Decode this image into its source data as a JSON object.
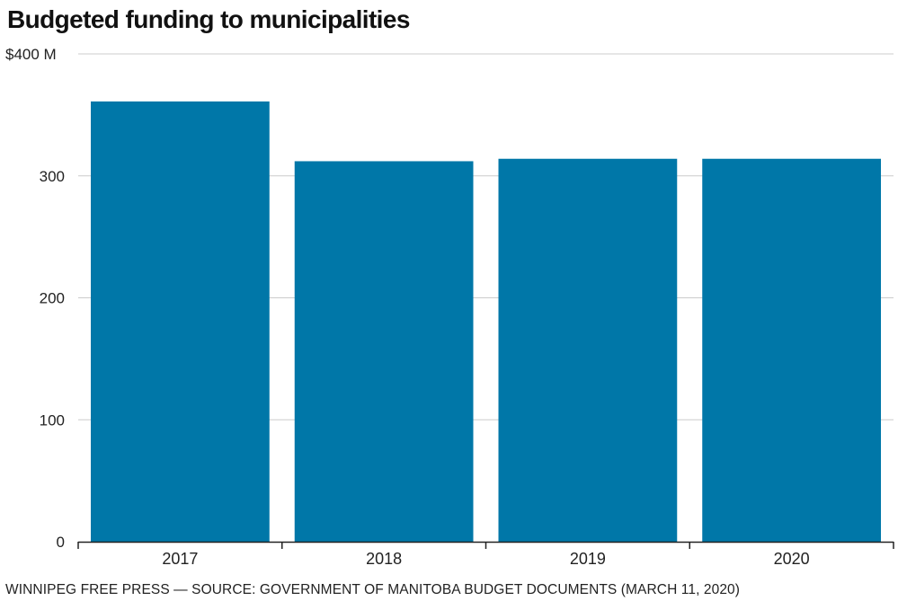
{
  "title": "Budgeted funding to municipalities",
  "source": "WINNIPEG FREE PRESS — SOURCE: GOVERNMENT OF MANITOBA BUDGET DOCUMENTS (MARCH 11, 2020)",
  "colors": {
    "bar": "#0077a8",
    "grid": "#cccccc",
    "axis": "#222222"
  },
  "chart_data": {
    "type": "bar",
    "title": "Budgeted funding to municipalities",
    "xlabel": "",
    "ylabel": "",
    "categories": [
      "2017",
      "2018",
      "2019",
      "2020"
    ],
    "values": [
      361,
      312,
      314,
      314
    ],
    "ylim": [
      0,
      400
    ],
    "yticks": [
      0,
      100,
      200,
      300,
      400
    ],
    "ytick_labels": [
      "0",
      "100",
      "200",
      "300",
      "$400 M"
    ],
    "grid": true,
    "legend": "none"
  }
}
